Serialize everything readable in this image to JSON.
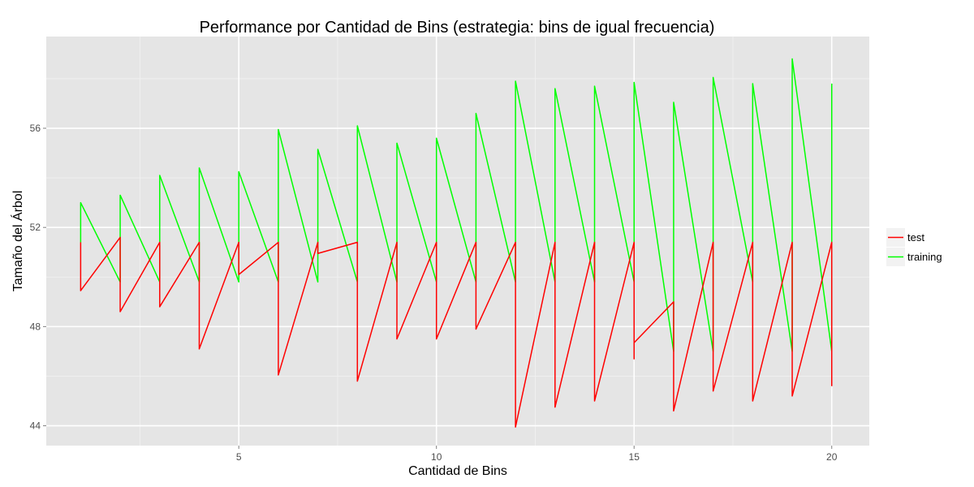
{
  "chart_data": {
    "type": "line",
    "title": "Performance por Cantidad de Bins (estrategia: bins de igual frecuencia)",
    "xlabel": "Cantidad de Bins",
    "ylabel": "Tamaño del Árbol",
    "xlim": [
      0.13,
      20.95
    ],
    "ylim": [
      43.2,
      59.7
    ],
    "x_ticks": [
      5,
      10,
      15,
      20
    ],
    "y_ticks": [
      44,
      48,
      52,
      56
    ],
    "x_tick_labels": [
      "5",
      "10",
      "15",
      "20"
    ],
    "y_tick_labels": [
      "44",
      "48",
      "52",
      "56"
    ],
    "grid": true,
    "legend_position": "right",
    "series": [
      {
        "name": "test",
        "color": "#ff0000",
        "points": [
          [
            1,
            51.4
          ],
          [
            1,
            49.45
          ],
          [
            2,
            51.6
          ],
          [
            2,
            48.6
          ],
          [
            3,
            51.4
          ],
          [
            3,
            48.8
          ],
          [
            4,
            51.4
          ],
          [
            4,
            47.1
          ],
          [
            5,
            51.4
          ],
          [
            5,
            50.1
          ],
          [
            6,
            51.4
          ],
          [
            6,
            46.05
          ],
          [
            7,
            51.4
          ],
          [
            7,
            50.95
          ],
          [
            8,
            51.4
          ],
          [
            8,
            45.8
          ],
          [
            9,
            51.4
          ],
          [
            9,
            47.5
          ],
          [
            10,
            51.4
          ],
          [
            10,
            47.5
          ],
          [
            11,
            51.4
          ],
          [
            11,
            47.9
          ],
          [
            12,
            51.4
          ],
          [
            12,
            43.95
          ],
          [
            13,
            51.4
          ],
          [
            13,
            44.75
          ],
          [
            14,
            51.4
          ],
          [
            14,
            45.0
          ],
          [
            15,
            51.4
          ],
          [
            15,
            46.7
          ],
          [
            15,
            47.35
          ],
          [
            16,
            49.0
          ],
          [
            16,
            44.6
          ],
          [
            17,
            51.4
          ],
          [
            17,
            45.4
          ],
          [
            18,
            51.4
          ],
          [
            18,
            45.0
          ],
          [
            19,
            51.4
          ],
          [
            19,
            45.2
          ],
          [
            20,
            51.4
          ],
          [
            20,
            45.6
          ]
        ]
      },
      {
        "name": "training",
        "color": "#00ff00",
        "points": [
          [
            1,
            51.4
          ],
          [
            1,
            53.0
          ],
          [
            2,
            49.8
          ],
          [
            2,
            53.3
          ],
          [
            3,
            49.8
          ],
          [
            3,
            54.1
          ],
          [
            4,
            49.8
          ],
          [
            4,
            54.4
          ],
          [
            5,
            49.8
          ],
          [
            5,
            54.25
          ],
          [
            6,
            49.8
          ],
          [
            6,
            55.95
          ],
          [
            7,
            49.8
          ],
          [
            7,
            55.15
          ],
          [
            8,
            49.8
          ],
          [
            8,
            56.1
          ],
          [
            9,
            49.8
          ],
          [
            9,
            55.4
          ],
          [
            10,
            49.8
          ],
          [
            10,
            55.6
          ],
          [
            11,
            49.8
          ],
          [
            11,
            56.6
          ],
          [
            12,
            49.8
          ],
          [
            12,
            57.9
          ],
          [
            13,
            49.8
          ],
          [
            13,
            57.6
          ],
          [
            14,
            49.8
          ],
          [
            14,
            57.7
          ],
          [
            15,
            49.8
          ],
          [
            15,
            57.85
          ],
          [
            16,
            47.0
          ],
          [
            16,
            57.05
          ],
          [
            17,
            47.0
          ],
          [
            17,
            58.05
          ],
          [
            18,
            49.8
          ],
          [
            18,
            57.8
          ],
          [
            19,
            47.0
          ],
          [
            19,
            58.8
          ],
          [
            20,
            47.0
          ],
          [
            20,
            57.8
          ]
        ]
      }
    ]
  }
}
